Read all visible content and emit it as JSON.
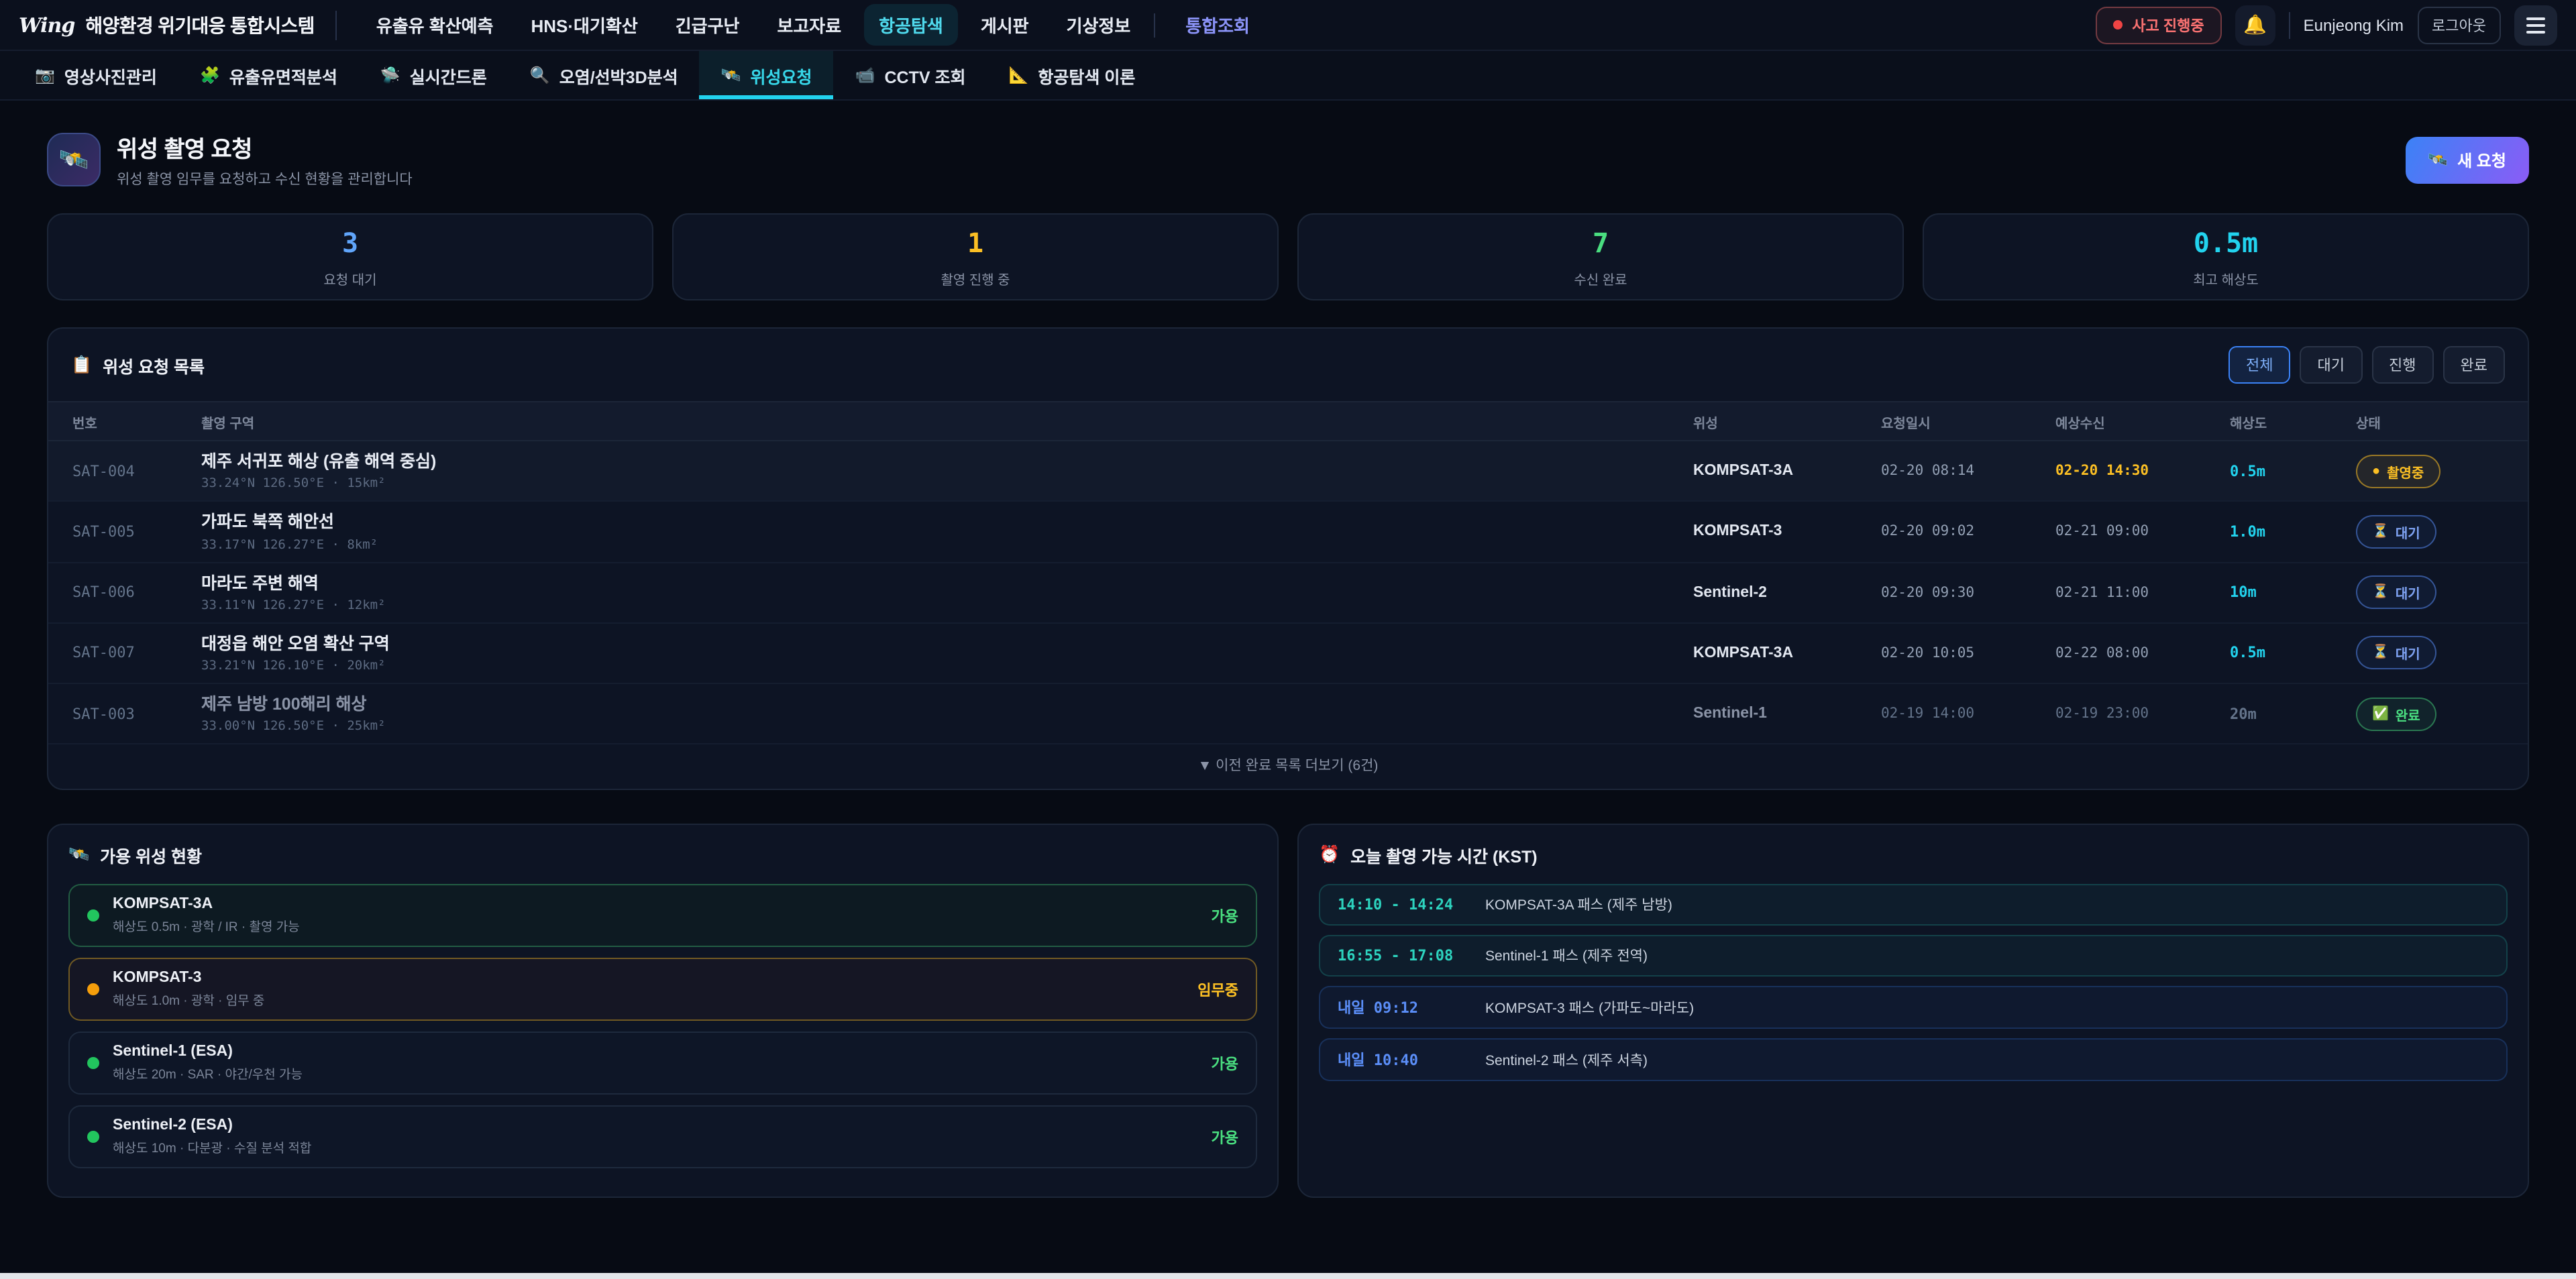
{
  "brand": {
    "logo_text": "Wing",
    "app_title": "해양환경 위기대응 통합시스템"
  },
  "topnav": {
    "items": [
      {
        "label": "유출유 확산예측"
      },
      {
        "label": "HNS·대기확산"
      },
      {
        "label": "긴급구난"
      },
      {
        "label": "보고자료"
      },
      {
        "label": "항공탐색"
      },
      {
        "label": "게시판"
      },
      {
        "label": "기상정보"
      },
      {
        "label": "통합조회"
      }
    ]
  },
  "topbar": {
    "incident_badge": "사고 진행중",
    "bell_icon": "🔔",
    "user_name": "Eunjeong Kim",
    "logout_label": "로그아웃"
  },
  "subnav": {
    "items": [
      {
        "icon": "📷",
        "label": "영상사진관리"
      },
      {
        "icon": "🧩",
        "label": "유출유면적분석"
      },
      {
        "icon": "🛸",
        "label": "실시간드론"
      },
      {
        "icon": "🔍",
        "label": "오염/선박3D분석"
      },
      {
        "icon": "🛰️",
        "label": "위성요청"
      },
      {
        "icon": "📹",
        "label": "CCTV 조회"
      },
      {
        "icon": "📐",
        "label": "항공탐색 이론"
      }
    ]
  },
  "page_header": {
    "icon": "🛰️",
    "title": "위성 촬영 요청",
    "subtitle": "위성 촬영 임무를 요청하고 수신 현황을 관리합니다",
    "new_request_icon": "🛰️",
    "new_request_label": "새 요청"
  },
  "stats": [
    {
      "value": "3",
      "label": "요청 대기",
      "color": "#60a5fa"
    },
    {
      "value": "1",
      "label": "촬영 진행 중",
      "color": "#fbbf24"
    },
    {
      "value": "7",
      "label": "수신 완료",
      "color": "#4ade80"
    },
    {
      "value": "0.5m",
      "label": "최고 해상도",
      "color": "#22d3ee"
    }
  ],
  "request_list": {
    "icon": "📋",
    "title": "위성 요청 목록",
    "filters": [
      {
        "label": "전체"
      },
      {
        "label": "대기"
      },
      {
        "label": "진행"
      },
      {
        "label": "완료"
      }
    ],
    "active_filter": "전체",
    "columns": {
      "no": "번호",
      "region": "촬영 구역",
      "satellite": "위성",
      "requested": "요청일시",
      "expected": "예상수신",
      "resolution": "해상도",
      "status": "상태"
    },
    "rows": [
      {
        "id": "SAT-004",
        "region": "제주 서귀포 해상 (유출 해역 중심)",
        "coords": "33.24°N 126.50°E · 15km²",
        "satellite": "KOMPSAT-3A",
        "requested": "02-20 08:14",
        "expected": "02-20 14:30",
        "resolution": "0.5m",
        "status_icon": "●",
        "status": "촬영중"
      },
      {
        "id": "SAT-005",
        "region": "가파도 북쪽 해안선",
        "coords": "33.17°N 126.27°E · 8km²",
        "satellite": "KOMPSAT-3",
        "requested": "02-20 09:02",
        "expected": "02-21 09:00",
        "resolution": "1.0m",
        "status_icon": "⏳",
        "status": "대기"
      },
      {
        "id": "SAT-006",
        "region": "마라도 주변 해역",
        "coords": "33.11°N 126.27°E · 12km²",
        "satellite": "Sentinel-2",
        "requested": "02-20 09:30",
        "expected": "02-21 11:00",
        "resolution": "10m",
        "status_icon": "⏳",
        "status": "대기"
      },
      {
        "id": "SAT-007",
        "region": "대정읍 해안 오염 확산 구역",
        "coords": "33.21°N 126.10°E · 20km²",
        "satellite": "KOMPSAT-3A",
        "requested": "02-20 10:05",
        "expected": "02-22 08:00",
        "resolution": "0.5m",
        "status_icon": "⏳",
        "status": "대기"
      },
      {
        "id": "SAT-003",
        "region": "제주 남방 100해리 해상",
        "coords": "33.00°N 126.50°E · 25km²",
        "satellite": "Sentinel-1",
        "requested": "02-19 14:00",
        "expected": "02-19 23:00",
        "resolution": "20m",
        "status_icon": "✅",
        "status": "완료"
      }
    ],
    "more_label": "▼ 이전 완료 목록 더보기 (6건)"
  },
  "satellites": {
    "icon": "🛰️",
    "title": "가용 위성 현황",
    "items": [
      {
        "name": "KOMPSAT-3A",
        "spec": "해상도 0.5m · 광학 / IR · 촬영 가능",
        "status": "가용"
      },
      {
        "name": "KOMPSAT-3",
        "spec": "해상도 1.0m · 광학 · 임무 중",
        "status": "임무중"
      },
      {
        "name": "Sentinel-1 (ESA)",
        "spec": "해상도 20m · SAR · 야간/우천 가능",
        "status": "가용"
      },
      {
        "name": "Sentinel-2 (ESA)",
        "spec": "해상도 10m · 다분광 · 수질 분석 적합",
        "status": "가용"
      }
    ]
  },
  "passes": {
    "icon": "⏰",
    "title": "오늘 촬영 가능 시간 (KST)",
    "items": [
      {
        "time": "14:10 - 14:24",
        "desc": "KOMPSAT-3A 패스 (제주 남방)"
      },
      {
        "time": "16:55 - 17:08",
        "desc": "Sentinel-1 패스 (제주 전역)"
      },
      {
        "time": "내일 09:12",
        "desc": "KOMPSAT-3 패스 (가파도~마라도)"
      },
      {
        "time": "내일 10:40",
        "desc": "Sentinel-2 패스 (제주 서측)"
      }
    ]
  },
  "colors": {
    "accent_teal": "#22d3ee",
    "accent_blue": "#60a5fa",
    "accent_amber": "#fbbf24",
    "accent_green": "#4ade80",
    "accent_indigo": "#818cf8",
    "accent_red": "#f87171"
  }
}
